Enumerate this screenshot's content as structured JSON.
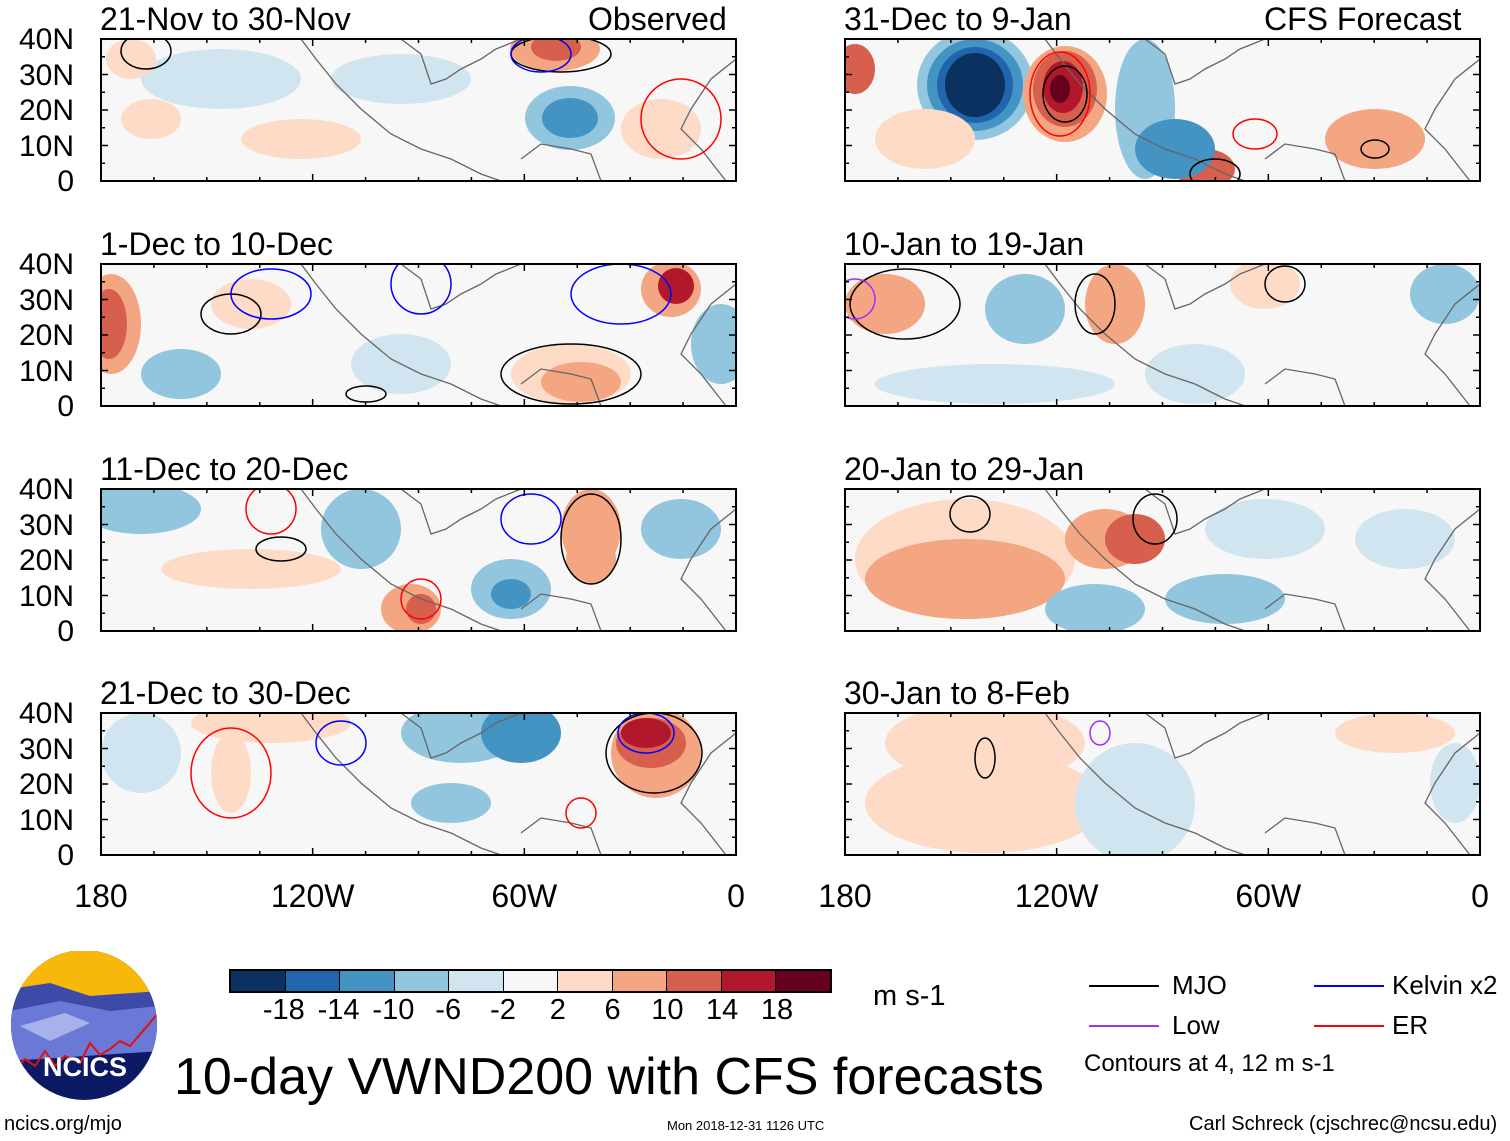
{
  "title": "10-day VWND200 with CFS forecasts",
  "observed_label": "Observed",
  "forecast_label": "CFS Forecast",
  "left_panels": [
    {
      "period": "21-Nov to 30-Nov"
    },
    {
      "period": "1-Dec to 10-Dec"
    },
    {
      "period": "11-Dec to 20-Dec"
    },
    {
      "period": "21-Dec to 30-Dec"
    }
  ],
  "right_panels": [
    {
      "period": "31-Dec to 9-Jan"
    },
    {
      "period": "10-Jan to 19-Jan"
    },
    {
      "period": "20-Jan to 29-Jan"
    },
    {
      "period": "30-Jan to 8-Feb"
    }
  ],
  "lat_labels": [
    "40N",
    "30N",
    "20N",
    "10N",
    "0"
  ],
  "lon_labels": [
    "180",
    "120W",
    "60W",
    "0"
  ],
  "colorbar": {
    "labels": [
      "-18",
      "-14",
      "-10",
      "-6",
      "-2",
      "2",
      "6",
      "10",
      "14",
      "18"
    ],
    "colors": [
      "#0a3160",
      "#2166ac",
      "#4393c3",
      "#92c5de",
      "#d1e5f0",
      "#f7f7f7",
      "#fddbc7",
      "#f4a582",
      "#d6604d",
      "#b2182b",
      "#67001f"
    ],
    "units": "m s-1"
  },
  "legend": [
    {
      "label": "MJO",
      "color": "#000000"
    },
    {
      "label": "Kelvin x2",
      "color": "#0000ff"
    },
    {
      "label": "Low",
      "color": "#9b30ff"
    },
    {
      "label": "ER",
      "color": "#ff0000"
    }
  ],
  "contour_note": "Contours at 4, 12 m s-1",
  "logo_text": "NCICS",
  "url": "ncics.org/mjo",
  "timestamp": "Mon 2018-12-31 1126 UTC",
  "credit": "Carl Schreck (cjschrec@ncsu.edu)"
}
